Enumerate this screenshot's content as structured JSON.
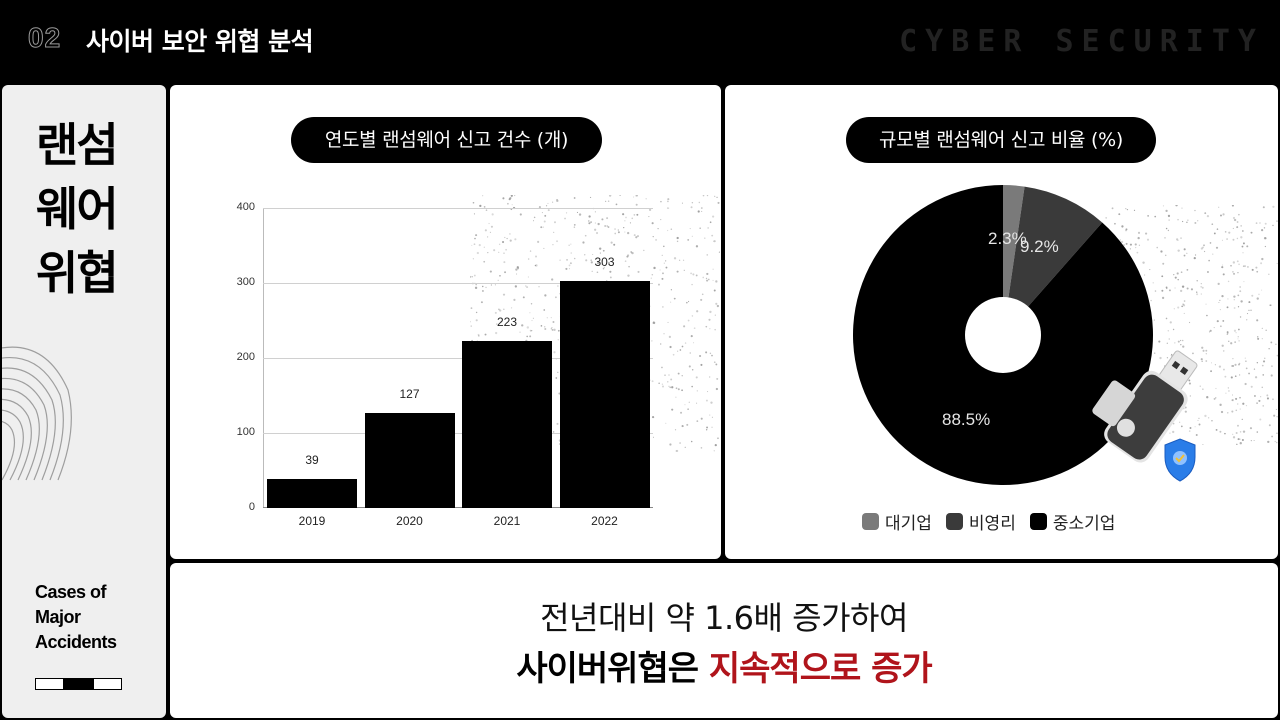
{
  "header": {
    "section_number": "02",
    "title": "사이버 보안 위협 분석",
    "brand": "CYBER SECURITY"
  },
  "sidebar": {
    "title_lines": [
      "랜섬",
      "웨어",
      "위협"
    ],
    "subtitle_lines": [
      "Cases of",
      "Major",
      "Accidents"
    ],
    "pager": {
      "total": 3,
      "active_index": 1
    }
  },
  "bar_panel": {
    "title": "연도별 랜섬웨어 신고 건수 (개)"
  },
  "pie_panel": {
    "title": "규모별 랜섬웨어 신고 비율 (%)",
    "legend": [
      {
        "label": "대기업",
        "color": "#7a7a7a"
      },
      {
        "label": "비영리",
        "color": "#3a3a3a"
      },
      {
        "label": "중소기업",
        "color": "#000000"
      }
    ],
    "illustration": "usb-drive-with-shield"
  },
  "summary": {
    "line1": "전년대비 약 1.6배 증가하여",
    "line2_plain": "사이버위협은 ",
    "line2_accent": "지속적으로 증가",
    "accent_color": "#b0141b"
  },
  "chart_data": [
    {
      "type": "bar",
      "title": "연도별 랜섬웨어 신고 건수 (개)",
      "categories": [
        "2019",
        "2020",
        "2021",
        "2022"
      ],
      "values": [
        39,
        127,
        223,
        303
      ],
      "xlabel": "",
      "ylabel": "",
      "ylim": [
        0,
        400
      ],
      "yticks": [
        0,
        100,
        200,
        300,
        400
      ],
      "grid": true,
      "bar_color": "#000000",
      "data_labels": true
    },
    {
      "type": "pie",
      "donut": true,
      "title": "규모별 랜섬웨어 신고 비율 (%)",
      "categories": [
        "대기업",
        "비영리",
        "중소기업"
      ],
      "values": [
        2.3,
        9.2,
        88.5
      ],
      "labels": [
        "2.3%",
        "9.2%",
        "88.5%"
      ],
      "colors": [
        "#7a7a7a",
        "#3a3a3a",
        "#000000"
      ],
      "legend_position": "bottom"
    }
  ]
}
